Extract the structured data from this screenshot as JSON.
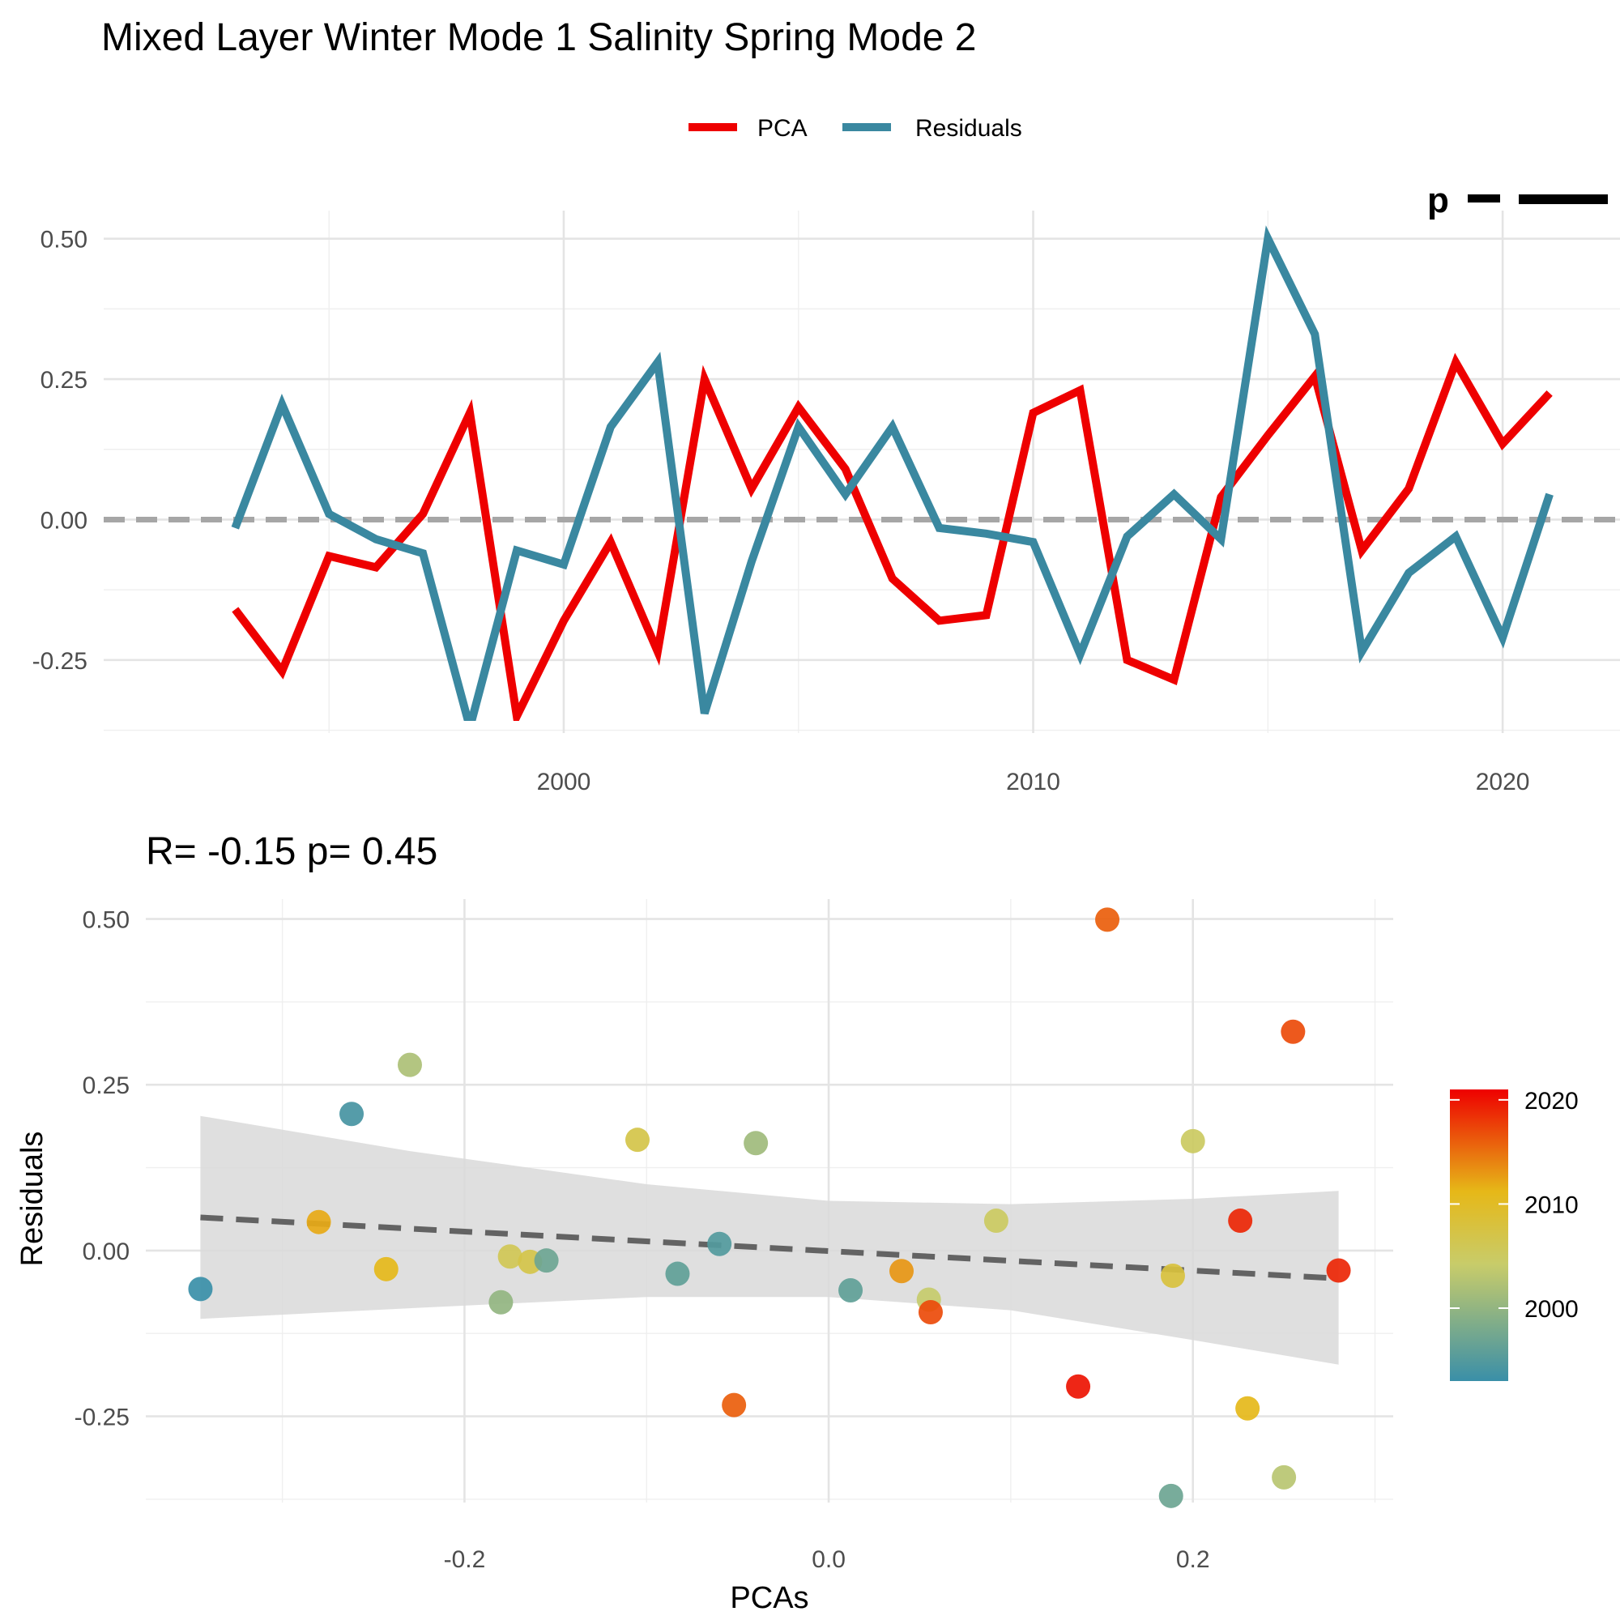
{
  "title": "Mixed Layer Winter Mode 1 Salinity Spring Mode 2",
  "colors": {
    "pca": "#ee0000",
    "residuals": "#3a88a0",
    "zero_line": "#a6a6a6",
    "fit_line": "#636363",
    "ribbon": "#d9d9d9"
  },
  "chart_data": [
    {
      "type": "line",
      "legend": {
        "position": "top",
        "entries": [
          "PCA",
          "Residuals"
        ]
      },
      "corner_label_fragment": "p",
      "x": [
        1993,
        1994,
        1995,
        1996,
        1997,
        1998,
        1999,
        2000,
        2001,
        2002,
        2003,
        2004,
        2005,
        2006,
        2007,
        2008,
        2009,
        2010,
        2011,
        2012,
        2013,
        2014,
        2015,
        2016,
        2017,
        2018,
        2019,
        2020,
        2021
      ],
      "series": [
        {
          "name": "PCA",
          "color": "#ee0000",
          "values": [
            -0.16,
            -0.27,
            -0.065,
            -0.085,
            0.01,
            0.19,
            -0.35,
            -0.18,
            -0.04,
            -0.235,
            0.25,
            0.055,
            0.2,
            0.09,
            -0.105,
            -0.18,
            -0.17,
            0.19,
            0.23,
            -0.25,
            -0.285,
            0.04,
            0.15,
            0.255,
            -0.055,
            0.055,
            0.28,
            0.135,
            0.225
          ]
        },
        {
          "name": "Residuals",
          "color": "#3a88a0",
          "values": [
            -0.015,
            0.205,
            0.01,
            -0.035,
            -0.06,
            -0.37,
            -0.055,
            -0.08,
            0.165,
            0.28,
            -0.345,
            -0.075,
            0.165,
            0.045,
            0.165,
            -0.015,
            -0.025,
            -0.04,
            -0.24,
            -0.03,
            0.045,
            -0.035,
            0.5,
            0.33,
            -0.235,
            -0.095,
            -0.03,
            -0.21,
            0.045
          ]
        }
      ],
      "reference_line_y": 0,
      "xlim": [
        1990.2,
        2022.5
      ],
      "ylim": [
        -0.38,
        0.55
      ],
      "x_ticks": [
        2000,
        2010,
        2020
      ],
      "x_tick_labels": [
        "2000",
        "2010",
        "2020"
      ],
      "y_ticks": [
        -0.25,
        0,
        0.25,
        0.5
      ],
      "y_tick_labels": [
        "-0.25",
        "0.00",
        "0.25",
        "0.50"
      ],
      "grid": true
    },
    {
      "type": "scatter",
      "subtitle": "R= -0.15  p= 0.45",
      "xlabel": "PCAs",
      "ylabel": "Residuals",
      "xlim": [
        -0.375,
        0.31
      ],
      "ylim": [
        -0.38,
        0.53
      ],
      "x_ticks": [
        -0.2,
        0,
        0.2
      ],
      "x_tick_labels": [
        "-0.2",
        "0.0",
        "0.2"
      ],
      "y_ticks": [
        -0.25,
        0,
        0.25,
        0.5
      ],
      "y_tick_labels": [
        "-0.25",
        "0.00",
        "0.25",
        "0.50"
      ],
      "grid": true,
      "points": [
        {
          "x": -0.345,
          "y": -0.058,
          "year": 1993
        },
        {
          "x": -0.262,
          "y": 0.206,
          "year": 1994
        },
        {
          "x": -0.28,
          "y": 0.043,
          "year": 2012
        },
        {
          "x": -0.243,
          "y": -0.028,
          "year": 2011
        },
        {
          "x": -0.23,
          "y": 0.28,
          "year": 2002
        },
        {
          "x": -0.18,
          "y": -0.078,
          "year": 2000
        },
        {
          "x": -0.175,
          "y": -0.009,
          "year": 2006
        },
        {
          "x": -0.164,
          "y": -0.017,
          "year": 2007
        },
        {
          "x": -0.155,
          "y": -0.015,
          "year": 1997
        },
        {
          "x": -0.105,
          "y": 0.167,
          "year": 2007
        },
        {
          "x": -0.083,
          "y": -0.035,
          "year": 1996
        },
        {
          "x": -0.06,
          "y": 0.01,
          "year": 1995
        },
        {
          "x": -0.052,
          "y": -0.233,
          "year": 2016
        },
        {
          "x": -0.04,
          "y": 0.162,
          "year": 2001
        },
        {
          "x": 0.012,
          "y": -0.06,
          "year": 1996
        },
        {
          "x": 0.04,
          "y": -0.031,
          "year": 2013
        },
        {
          "x": 0.055,
          "y": -0.074,
          "year": 2004
        },
        {
          "x": 0.056,
          "y": -0.093,
          "year": 2017
        },
        {
          "x": 0.092,
          "y": 0.045,
          "year": 2005
        },
        {
          "x": 0.137,
          "y": -0.205,
          "year": 2020
        },
        {
          "x": 0.153,
          "y": 0.499,
          "year": 2016
        },
        {
          "x": 0.188,
          "y": -0.37,
          "year": 1997
        },
        {
          "x": 0.189,
          "y": -0.038,
          "year": 2008
        },
        {
          "x": 0.2,
          "y": 0.165,
          "year": 2005
        },
        {
          "x": 0.226,
          "y": 0.045,
          "year": 2019
        },
        {
          "x": 0.23,
          "y": -0.238,
          "year": 2011
        },
        {
          "x": 0.25,
          "y": -0.342,
          "year": 2003
        },
        {
          "x": 0.255,
          "y": 0.33,
          "year": 2017
        },
        {
          "x": 0.28,
          "y": -0.03,
          "year": 2019
        }
      ],
      "fit": {
        "x_start": -0.345,
        "x_end": 0.28,
        "y_start": 0.05,
        "y_end": -0.042
      },
      "ribbon": {
        "x": [
          -0.345,
          -0.23,
          -0.1,
          0.0,
          0.1,
          0.2,
          0.28
        ],
        "upper": [
          0.203,
          0.15,
          0.1,
          0.075,
          0.07,
          0.078,
          0.09
        ],
        "lower": [
          -0.103,
          -0.087,
          -0.07,
          -0.07,
          -0.09,
          -0.135,
          -0.172
        ]
      },
      "colorbar": {
        "title": "",
        "range": [
          1993,
          2021
        ],
        "ticks": [
          2000,
          2010,
          2020
        ],
        "tick_labels": [
          "2000",
          "2010",
          "2020"
        ],
        "stops": [
          "#3a8fa8",
          "#c8cc6a",
          "#e6b818",
          "#ee0000"
        ]
      }
    }
  ]
}
